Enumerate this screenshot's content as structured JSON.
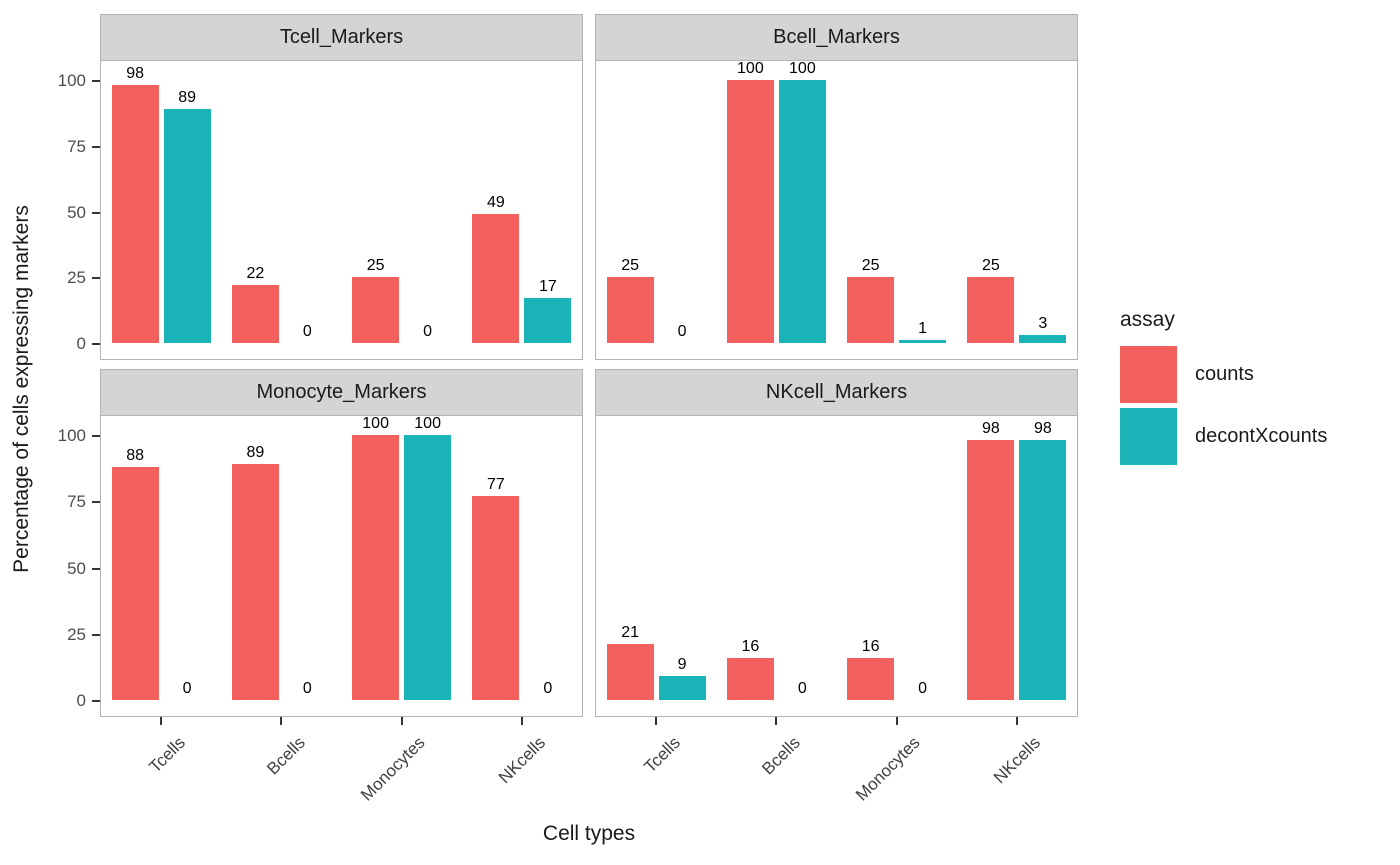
{
  "figure": {
    "ylabel": "Percentage of cells expressing markers",
    "xlabel": "Cell types"
  },
  "legend": {
    "title": "assay",
    "entries": [
      {
        "label": "counts",
        "color": "#F4605E"
      },
      {
        "label": "decontXcounts",
        "color": "#1AB3B7"
      }
    ]
  },
  "chart_data": {
    "type": "bar",
    "faceted": true,
    "facet_layout": "2x2",
    "categories": [
      "Tcells",
      "Bcells",
      "Monocytes",
      "NKcells"
    ],
    "yticks": [
      0,
      25,
      50,
      75,
      100
    ],
    "ylim": [
      0,
      105
    ],
    "grid": false,
    "bar_value_labels": true,
    "xlabel": "Cell types",
    "ylabel": "Percentage of cells expressing markers",
    "legend_title": "assay",
    "legend_position": "right",
    "series_colors": {
      "counts": "#F4605E",
      "decontXcounts": "#1AB3B7"
    },
    "facets": [
      {
        "title": "Tcell_Markers",
        "series": [
          {
            "name": "counts",
            "values": [
              98,
              22,
              25,
              49
            ]
          },
          {
            "name": "decontXcounts",
            "values": [
              89,
              0,
              0,
              17
            ]
          }
        ]
      },
      {
        "title": "Bcell_Markers",
        "series": [
          {
            "name": "counts",
            "values": [
              25,
              100,
              25,
              25
            ]
          },
          {
            "name": "decontXcounts",
            "values": [
              0,
              100,
              1,
              3
            ]
          }
        ]
      },
      {
        "title": "Monocyte_Markers",
        "series": [
          {
            "name": "counts",
            "values": [
              88,
              89,
              100,
              77
            ]
          },
          {
            "name": "decontXcounts",
            "values": [
              0,
              0,
              100,
              0
            ]
          }
        ]
      },
      {
        "title": "NKcell_Markers",
        "series": [
          {
            "name": "counts",
            "values": [
              21,
              16,
              16,
              98
            ]
          },
          {
            "name": "decontXcounts",
            "values": [
              9,
              0,
              0,
              98
            ]
          }
        ]
      }
    ],
    "style": {
      "strip_background": "#D4D4D4",
      "panel_border": "#B3B3B3",
      "tick_color": "#333333",
      "axis_text_color": "#4D4D4D"
    }
  }
}
